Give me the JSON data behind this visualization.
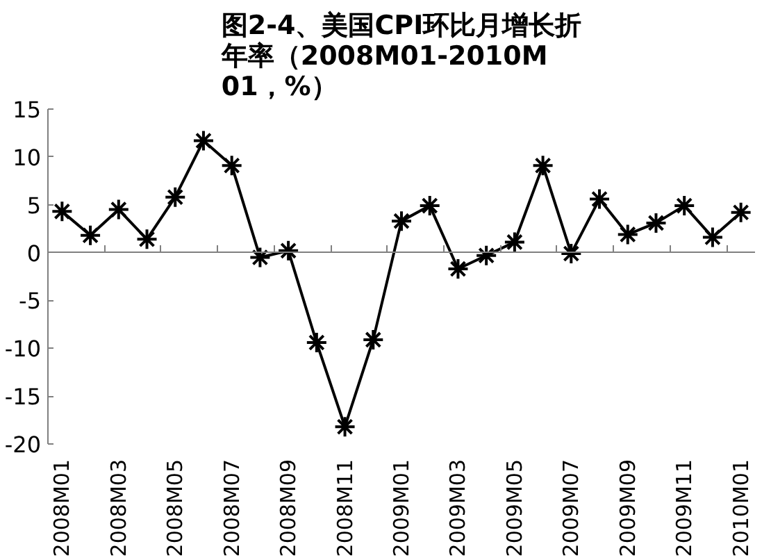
{
  "chart_data": {
    "type": "line",
    "title": "图2-4、美国CPI环比月增长折年率（2008M01-2010M01，%）",
    "categories": [
      "2008M01",
      null,
      "2008M03",
      null,
      "2008M05",
      null,
      "2008M07",
      null,
      "2008M09",
      null,
      "2008M11",
      null,
      "2009M01",
      null,
      "2009M03",
      null,
      "2009M05",
      null,
      "2009M07",
      null,
      "2009M09",
      null,
      "2009M11",
      null,
      "2010M01"
    ],
    "series": [
      {
        "color": "#000000",
        "values": [
          4.3,
          1.8,
          4.5,
          1.4,
          5.8,
          11.7,
          9.1,
          -0.5,
          0.2,
          -9.4,
          -18.2,
          -9.1,
          3.3,
          4.9,
          -1.7,
          -0.3,
          1.1,
          9.1,
          -0.1,
          5.6,
          1.9,
          3.1,
          4.9,
          1.6,
          4.2
        ]
      }
    ],
    "ylim": [
      -20,
      15
    ],
    "yticks": [
      -20,
      -15,
      -10,
      -5,
      0,
      5,
      10,
      15
    ],
    "marker": "cross",
    "line_style": "solid"
  }
}
